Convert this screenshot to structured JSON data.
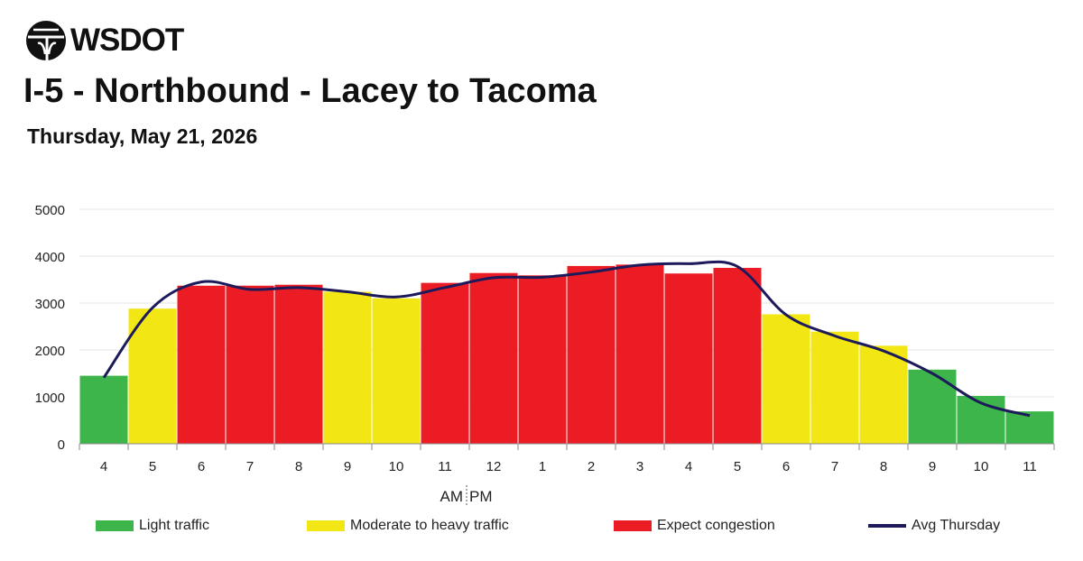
{
  "header": {
    "brand": "WSDOT",
    "title": "I-5 - Northbound - Lacey to Tacoma",
    "date": "Thursday, May 21, 2026"
  },
  "colors": {
    "light": "#3db54a",
    "moderate": "#f2e614",
    "congestion": "#ec1c24",
    "avg_line": "#1c1a5a",
    "grid": "#e6e6e6",
    "axis": "#555555"
  },
  "legend": {
    "light": "Light traffic",
    "moderate": "Moderate to heavy traffic",
    "congestion": "Expect congestion",
    "avg": "Avg Thursday"
  },
  "chart_data": {
    "type": "bar",
    "ylim": [
      0,
      5000
    ],
    "yticks": [
      0,
      1000,
      2000,
      3000,
      4000,
      5000
    ],
    "categories": [
      "4",
      "5",
      "6",
      "7",
      "8",
      "9",
      "10",
      "11",
      "12",
      "1",
      "2",
      "3",
      "4",
      "5",
      "6",
      "7",
      "8",
      "9",
      "10",
      "11"
    ],
    "am_label": "AM",
    "pm_label": "PM",
    "values": [
      1450,
      2880,
      3370,
      3370,
      3390,
      3240,
      3100,
      3430,
      3640,
      3590,
      3790,
      3820,
      3630,
      3750,
      2760,
      2390,
      2090,
      1580,
      1020,
      690
    ],
    "levels": [
      "light",
      "moderate",
      "congestion",
      "congestion",
      "congestion",
      "moderate",
      "moderate",
      "congestion",
      "congestion",
      "congestion",
      "congestion",
      "congestion",
      "congestion",
      "congestion",
      "moderate",
      "moderate",
      "moderate",
      "light",
      "light",
      "light"
    ],
    "avg_thursday": [
      1410,
      2900,
      3450,
      3290,
      3330,
      3240,
      3130,
      3330,
      3540,
      3550,
      3660,
      3810,
      3840,
      3780,
      2750,
      2300,
      1980,
      1500,
      870,
      600
    ]
  }
}
